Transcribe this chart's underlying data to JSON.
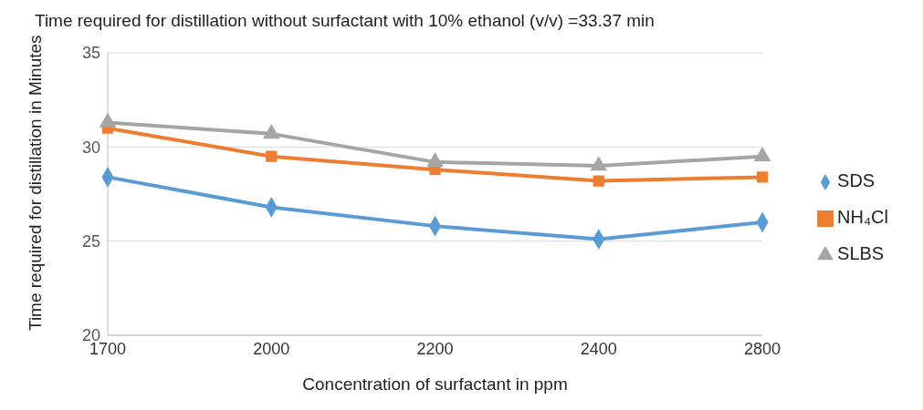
{
  "chart_data": {
    "type": "line",
    "title": "Time required for distillation without surfactant with 10% ethanol (v/v) =33.37 min",
    "xlabel": "Concentration of surfactant in ppm",
    "ylabel": "Time required for distillation in Minutes",
    "categories": [
      "1700",
      "2000",
      "2200",
      "2400",
      "2800"
    ],
    "series": [
      {
        "name": "SDS",
        "color": "#5b9bd5",
        "marker": "diamond",
        "values": [
          28.4,
          26.8,
          25.8,
          25.1,
          26.0
        ]
      },
      {
        "name": "NH₄Cl",
        "color": "#ed7d31",
        "marker": "square",
        "values": [
          31.0,
          29.5,
          28.8,
          28.2,
          28.4
        ]
      },
      {
        "name": "SLBS",
        "color": "#a5a5a5",
        "marker": "triangle",
        "values": [
          31.3,
          30.7,
          29.2,
          29.0,
          29.5
        ]
      }
    ],
    "ylim": [
      20,
      35
    ],
    "yticks": [
      20,
      25,
      30,
      35
    ],
    "grid": "y",
    "legend": "right",
    "line_style": "solid"
  }
}
